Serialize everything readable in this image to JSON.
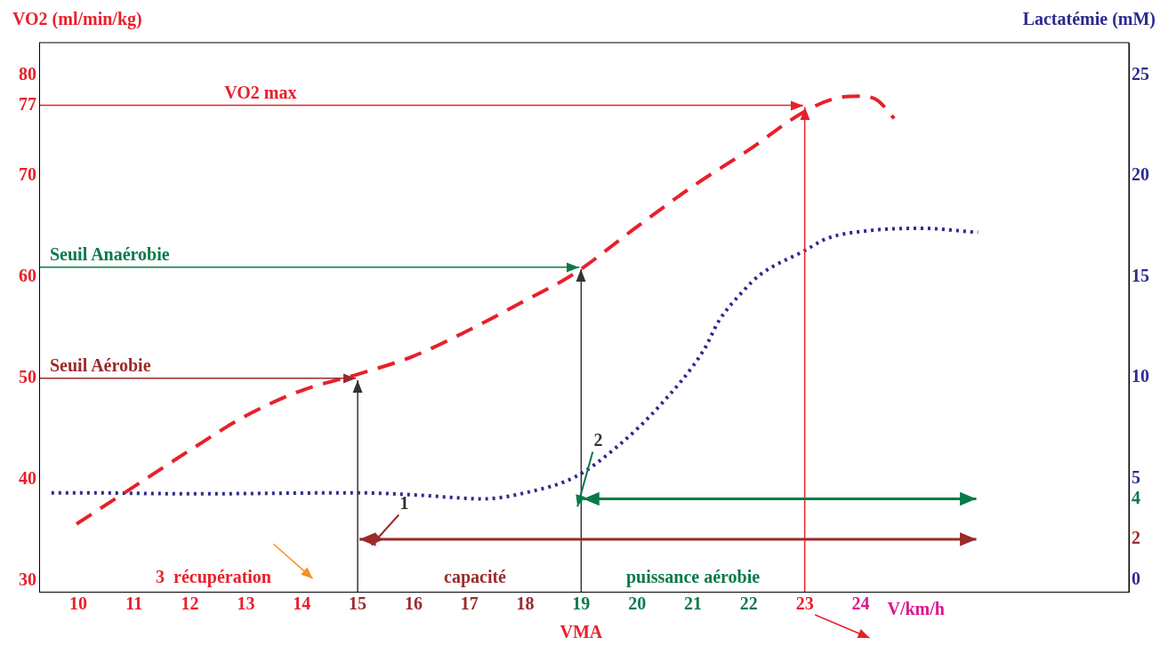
{
  "chart_data": {
    "type": "line",
    "ylabel": "VO2 (ml/min/kg)",
    "y2label": "Lactatémie (mM)",
    "xlabel": "V/km/h",
    "xlim": [
      9.3,
      28.8
    ],
    "xticks": [
      10,
      11,
      12,
      13,
      14,
      15,
      16,
      17,
      18,
      19,
      20,
      21,
      22,
      23,
      24
    ],
    "ylim": [
      28.9,
      83.2
    ],
    "yticks": [
      30,
      40,
      50,
      60,
      70,
      77,
      80
    ],
    "y2lim": [
      -0.6,
      26.6
    ],
    "y2ticks": [
      0,
      2,
      4,
      5,
      10,
      15,
      20,
      25
    ],
    "grid": false,
    "legend": false,
    "marker": "none",
    "series": [
      {
        "color": "#e8202a",
        "line_style": "dashed",
        "x": [
          9.97,
          11,
          12,
          13,
          14,
          15,
          16,
          17,
          18,
          18.86,
          20,
          21,
          22,
          23,
          23.56,
          24,
          24.3,
          24.6
        ],
        "values": [
          35.6,
          39.3,
          42.9,
          46.3,
          48.8,
          50.4,
          52.2,
          54.8,
          57.7,
          60.3,
          65,
          69,
          72.6,
          76.4,
          77.7,
          77.9,
          77.5,
          75.7
        ]
      },
      {
        "color": "#2b2b8f",
        "line_style": "dotted",
        "axis": "y2",
        "x": [
          9.52,
          10,
          12,
          15,
          16,
          17.25,
          18,
          18.9,
          19.65,
          20.4,
          21.2,
          21.46,
          21.9,
          22.2,
          23,
          23.4,
          24.2,
          25.1,
          26.1
        ],
        "values": [
          4.3,
          4.3,
          4.25,
          4.3,
          4.2,
          4.0,
          4.3,
          5.1,
          6.6,
          8.6,
          11.4,
          12.8,
          14.3,
          15.1,
          16.3,
          16.9,
          17.3,
          17.4,
          17.2
        ]
      }
    ],
    "ref_lines": [
      {
        "axis": "y",
        "value": 77,
        "label": "VO2 max",
        "color": "#e8202a"
      },
      {
        "axis": "y",
        "value": 61,
        "label": "Seuil Anaérobie",
        "color": "#0a7a4a"
      },
      {
        "axis": "y",
        "value": 50,
        "label": "Seuil Aérobie",
        "color": "#9b2a2a"
      },
      {
        "axis": "x",
        "value": 23,
        "color": "#e8202a"
      },
      {
        "axis": "x",
        "value": 19,
        "color": "#333333"
      },
      {
        "axis": "x",
        "value": 15,
        "color": "#333333"
      }
    ],
    "annotations": [
      "3  récupération",
      "capacité",
      "puissance aérobie",
      "VMA",
      "1",
      "2"
    ]
  }
}
